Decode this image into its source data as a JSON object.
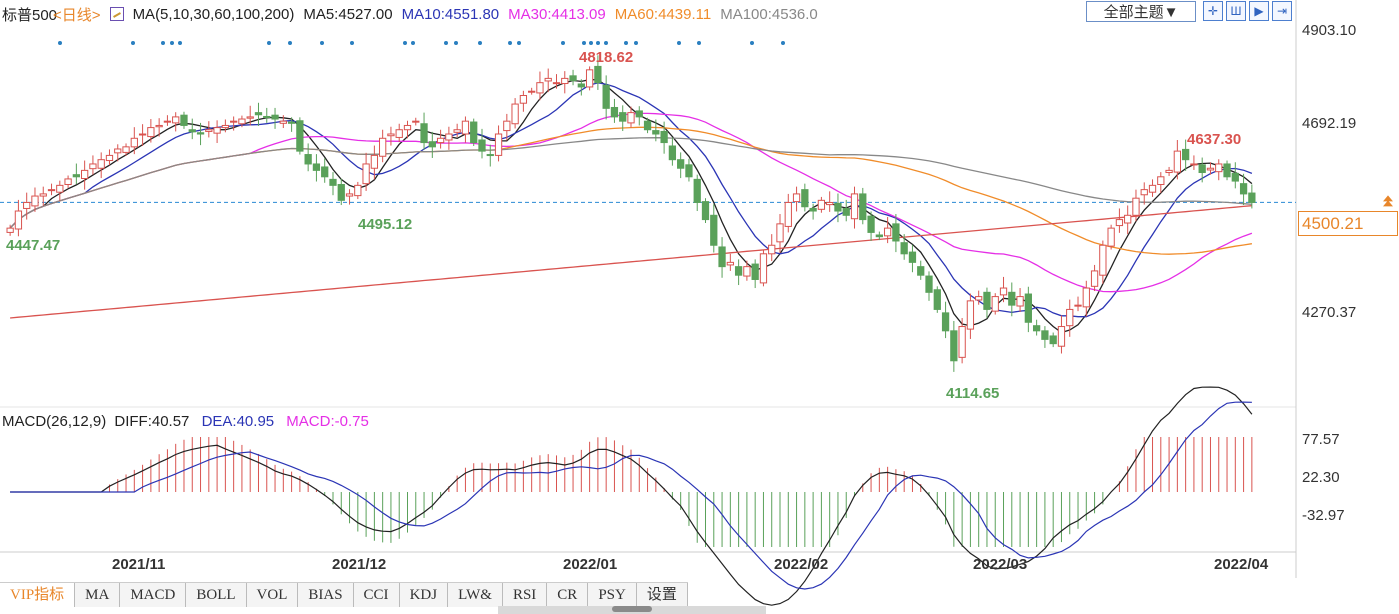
{
  "header": {
    "symbol": "标普500",
    "period": "<日线>",
    "ma_title": "MA(5,10,30,60,100,200)",
    "ma_values": [
      {
        "label": "MA5:4527.00",
        "color": "#222222"
      },
      {
        "label": "MA10:4551.80",
        "color": "#2b35b5"
      },
      {
        "label": "MA30:4413.09",
        "color": "#e52fe6"
      },
      {
        "label": "MA60:4439.11",
        "color": "#f08c2a"
      },
      {
        "label": "MA100:4536.0",
        "color": "#888888"
      }
    ],
    "theme_select": "全部主题▼",
    "toolbar_icons": [
      "crosshair-icon",
      "bars-icon",
      "play-icon",
      "step-icon"
    ]
  },
  "price_axis": [
    "4903.10",
    "4692.19",
    "4270.37"
  ],
  "current_price": "4500.21",
  "annotations": [
    {
      "text": "4818.62",
      "color": "#d9534f"
    },
    {
      "text": "4637.30",
      "color": "#d9534f"
    },
    {
      "text": "4495.12",
      "color": "#5aa15a"
    },
    {
      "text": "4447.47",
      "color": "#5aa15a"
    },
    {
      "text": "4114.65",
      "color": "#5aa15a"
    }
  ],
  "macd_legend": [
    {
      "label": "MACD(26,12,9)",
      "color": "#222222"
    },
    {
      "label": "DIFF:40.57",
      "color": "#222222"
    },
    {
      "label": "DEA:40.95",
      "color": "#2b35b5"
    },
    {
      "label": "MACD:-0.75",
      "color": "#e52fe6"
    }
  ],
  "macd_axis": [
    "77.57",
    "22.30",
    "-32.97"
  ],
  "dates": [
    "2021/11",
    "2021/12",
    "2022/01",
    "2022/02",
    "2022/03",
    "2022/04"
  ],
  "tabs": [
    "VIP指标",
    "MA",
    "MACD",
    "BOLL",
    "VOL",
    "BIAS",
    "CCI",
    "KDJ",
    "LW&",
    "RSI",
    "CR",
    "PSY",
    "设置"
  ],
  "colors": {
    "up": "#d9534f",
    "down": "#5aa15a",
    "accent": "#e8862a",
    "dash": "#2a8ad4"
  },
  "chart_data": {
    "type": "candlestick",
    "y_range": [
      4050,
      4903.1
    ],
    "closes": [
      4440,
      4480,
      4500,
      4515,
      4520,
      4530,
      4540,
      4555,
      4560,
      4575,
      4590,
      4600,
      4610,
      4625,
      4630,
      4650,
      4660,
      4675,
      4680,
      4690,
      4700,
      4680,
      4665,
      4660,
      4670,
      4675,
      4680,
      4690,
      4695,
      4700,
      4705,
      4700,
      4695,
      4690,
      4685,
      4620,
      4590,
      4575,
      4560,
      4540,
      4505,
      4520,
      4540,
      4590,
      4610,
      4650,
      4660,
      4670,
      4680,
      4690,
      4640,
      4630,
      4650,
      4660,
      4670,
      4690,
      4640,
      4620,
      4610,
      4660,
      4690,
      4730,
      4750,
      4760,
      4780,
      4790,
      4780,
      4790,
      4785,
      4770,
      4810,
      4780,
      4720,
      4700,
      4690,
      4710,
      4700,
      4670,
      4660,
      4640,
      4600,
      4580,
      4560,
      4500,
      4460,
      4400,
      4350,
      4360,
      4330,
      4350,
      4320,
      4380,
      4400,
      4450,
      4500,
      4520,
      4490,
      4480,
      4505,
      4500,
      4480,
      4470,
      4520,
      4460,
      4430,
      4420,
      4440,
      4410,
      4380,
      4360,
      4330,
      4290,
      4250,
      4200,
      4130,
      4210,
      4270,
      4280,
      4250,
      4280,
      4300,
      4260,
      4280,
      4220,
      4200,
      4180,
      4170,
      4210,
      4250,
      4260,
      4300,
      4340,
      4400,
      4440,
      4460,
      4470,
      4510,
      4530,
      4540,
      4560,
      4575,
      4620,
      4600,
      4590,
      4570,
      4580,
      4590,
      4560,
      4550,
      4520,
      4500
    ]
  }
}
